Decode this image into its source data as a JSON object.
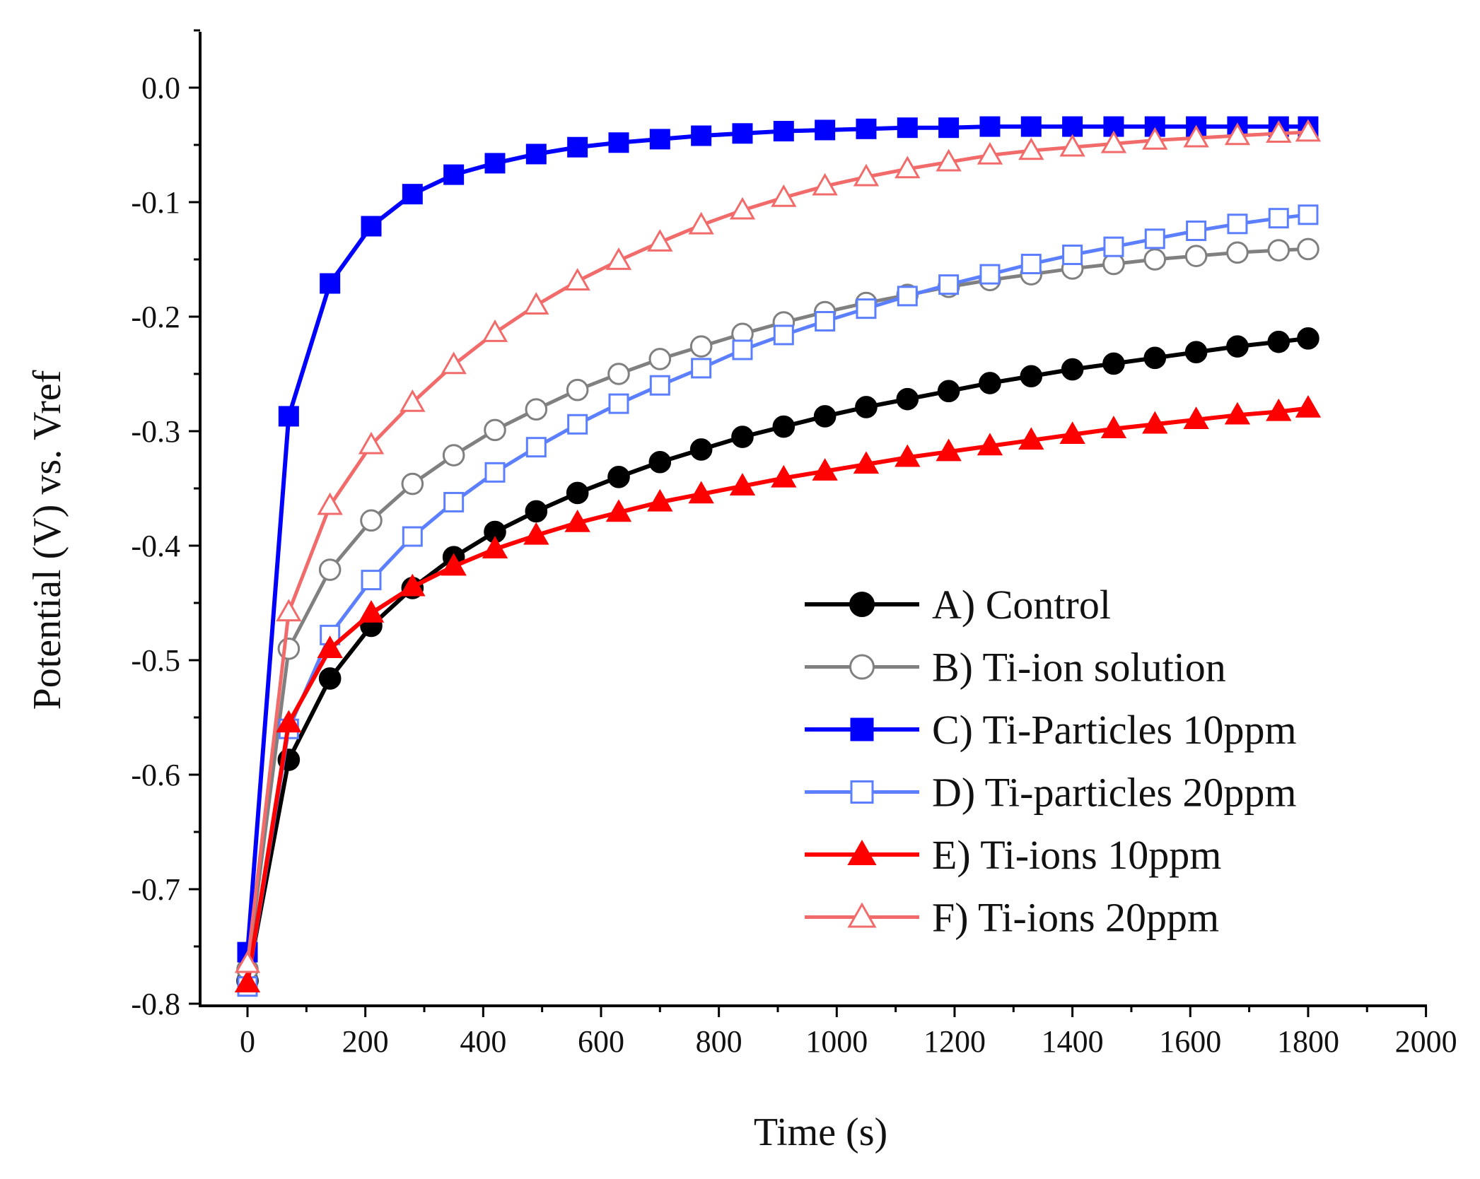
{
  "chart_data": {
    "type": "line",
    "title": "",
    "xlabel": "Time (s)",
    "ylabel": "Potential (V) vs. Vref",
    "xlim": [
      -40,
      2000
    ],
    "ylim": [
      -0.8,
      0.05
    ],
    "xticks": [
      0,
      200,
      400,
      600,
      800,
      1000,
      1200,
      1400,
      1600,
      1800,
      2000
    ],
    "xtick_labels": [
      "0",
      "200",
      "400",
      "600",
      "800",
      "1000",
      "1200",
      "1400",
      "1600",
      "1800",
      "2000"
    ],
    "yticks": [
      -0.8,
      -0.7,
      -0.6,
      -0.5,
      -0.4,
      -0.3,
      -0.2,
      -0.1,
      0.0
    ],
    "ytick_labels": [
      "-0.8",
      "-0.7",
      "-0.6",
      "-0.5",
      "-0.4",
      "-0.3",
      "-0.2",
      "-0.1",
      "0.0"
    ],
    "grid": false,
    "legend_position": "lower-right",
    "x": [
      0,
      70,
      140,
      210,
      280,
      350,
      420,
      490,
      560,
      630,
      700,
      770,
      840,
      910,
      980,
      1050,
      1120,
      1190,
      1260,
      1330,
      1400,
      1470,
      1540,
      1610,
      1680,
      1750,
      1800
    ],
    "series": [
      {
        "name": "A) Control",
        "color": "#000000",
        "marker": "circle",
        "filled": true,
        "values": [
          -0.78,
          -0.587,
          -0.516,
          -0.47,
          -0.437,
          -0.41,
          -0.388,
          -0.37,
          -0.354,
          -0.34,
          -0.327,
          -0.316,
          -0.305,
          -0.296,
          -0.287,
          -0.279,
          -0.272,
          -0.265,
          -0.258,
          -0.252,
          -0.246,
          -0.241,
          -0.236,
          -0.231,
          -0.226,
          -0.222,
          -0.219
        ]
      },
      {
        "name": "B) Ti-ion solution",
        "color": "#808080",
        "marker": "circle",
        "filled": false,
        "values": [
          -0.77,
          -0.49,
          -0.421,
          -0.378,
          -0.346,
          -0.321,
          -0.299,
          -0.281,
          -0.264,
          -0.25,
          -0.237,
          -0.226,
          -0.215,
          -0.205,
          -0.196,
          -0.188,
          -0.181,
          -0.174,
          -0.168,
          -0.163,
          -0.158,
          -0.154,
          -0.15,
          -0.147,
          -0.144,
          -0.142,
          -0.141
        ]
      },
      {
        "name": "C) Ti-Particles 10ppm",
        "color": "#0000ff",
        "marker": "square",
        "filled": true,
        "values": [
          -0.755,
          -0.287,
          -0.171,
          -0.121,
          -0.093,
          -0.076,
          -0.066,
          -0.058,
          -0.052,
          -0.048,
          -0.045,
          -0.042,
          -0.04,
          -0.038,
          -0.037,
          -0.036,
          -0.035,
          -0.035,
          -0.034,
          -0.034,
          -0.034,
          -0.034,
          -0.034,
          -0.034,
          -0.034,
          -0.034,
          -0.034
        ]
      },
      {
        "name": "D) Ti-particles 20ppm",
        "color": "#5b7fff",
        "marker": "square",
        "filled": false,
        "values": [
          -0.785,
          -0.56,
          -0.478,
          -0.43,
          -0.392,
          -0.362,
          -0.336,
          -0.314,
          -0.294,
          -0.276,
          -0.26,
          -0.245,
          -0.229,
          -0.216,
          -0.204,
          -0.193,
          -0.182,
          -0.172,
          -0.163,
          -0.154,
          -0.146,
          -0.139,
          -0.132,
          -0.125,
          -0.119,
          -0.114,
          -0.111
        ]
      },
      {
        "name": "E) Ti-ions 10ppm",
        "color": "#ff0000",
        "marker": "triangle",
        "filled": true,
        "values": [
          -0.782,
          -0.555,
          -0.49,
          -0.459,
          -0.436,
          -0.418,
          -0.403,
          -0.391,
          -0.38,
          -0.371,
          -0.362,
          -0.355,
          -0.348,
          -0.341,
          -0.335,
          -0.329,
          -0.323,
          -0.318,
          -0.313,
          -0.308,
          -0.303,
          -0.298,
          -0.294,
          -0.29,
          -0.286,
          -0.283,
          -0.28
        ]
      },
      {
        "name": "F) Ti-ions 20ppm",
        "color": "#f26b6b",
        "marker": "triangle",
        "filled": false,
        "values": [
          -0.765,
          -0.458,
          -0.365,
          -0.312,
          -0.275,
          -0.242,
          -0.214,
          -0.19,
          -0.169,
          -0.151,
          -0.135,
          -0.12,
          -0.107,
          -0.096,
          -0.086,
          -0.078,
          -0.071,
          -0.065,
          -0.059,
          -0.055,
          -0.052,
          -0.049,
          -0.046,
          -0.044,
          -0.042,
          -0.04,
          -0.039
        ]
      }
    ]
  }
}
